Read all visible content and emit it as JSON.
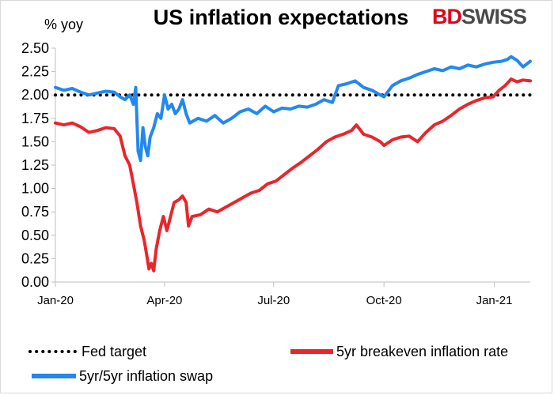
{
  "chart_data": {
    "type": "line",
    "title": "US inflation expectations",
    "ylabel": "% yoy",
    "xlabel": "",
    "ylim": [
      0,
      2.5
    ],
    "yticks": [
      "0.00",
      "0.25",
      "0.50",
      "0.75",
      "1.00",
      "1.25",
      "1.50",
      "1.75",
      "2.00",
      "2.25",
      "2.50"
    ],
    "xtick_labels": [
      "Jan-20",
      "Apr-20",
      "Jul-20",
      "Oct-20",
      "Jan-21"
    ],
    "x_range": [
      "2020-01-01",
      "2021-01-31"
    ],
    "grid": false,
    "legend_position": "bottom",
    "series": [
      {
        "name": "Fed target",
        "style": "dotted",
        "color": "#000000",
        "points": [
          [
            "2020-01-01",
            2.0
          ],
          [
            "2021-01-31",
            2.0
          ]
        ]
      },
      {
        "name": "5yr breakeven inflation rate",
        "style": "solid",
        "color": "#e8262c",
        "points": [
          [
            "2020-01-01",
            1.7
          ],
          [
            "2020-01-08",
            1.68
          ],
          [
            "2020-01-15",
            1.7
          ],
          [
            "2020-01-22",
            1.66
          ],
          [
            "2020-01-29",
            1.6
          ],
          [
            "2020-02-05",
            1.62
          ],
          [
            "2020-02-12",
            1.65
          ],
          [
            "2020-02-19",
            1.64
          ],
          [
            "2020-02-24",
            1.56
          ],
          [
            "2020-02-28",
            1.35
          ],
          [
            "2020-03-03",
            1.25
          ],
          [
            "2020-03-06",
            1.05
          ],
          [
            "2020-03-09",
            0.85
          ],
          [
            "2020-03-12",
            0.6
          ],
          [
            "2020-03-15",
            0.45
          ],
          [
            "2020-03-17",
            0.3
          ],
          [
            "2020-03-19",
            0.14
          ],
          [
            "2020-03-21",
            0.2
          ],
          [
            "2020-03-23",
            0.12
          ],
          [
            "2020-03-25",
            0.35
          ],
          [
            "2020-03-28",
            0.55
          ],
          [
            "2020-03-31",
            0.7
          ],
          [
            "2020-04-03",
            0.55
          ],
          [
            "2020-04-06",
            0.7
          ],
          [
            "2020-04-09",
            0.85
          ],
          [
            "2020-04-13",
            0.88
          ],
          [
            "2020-04-16",
            0.92
          ],
          [
            "2020-04-19",
            0.85
          ],
          [
            "2020-04-21",
            0.6
          ],
          [
            "2020-04-24",
            0.7
          ],
          [
            "2020-05-01",
            0.72
          ],
          [
            "2020-05-08",
            0.78
          ],
          [
            "2020-05-15",
            0.75
          ],
          [
            "2020-05-22",
            0.8
          ],
          [
            "2020-05-29",
            0.85
          ],
          [
            "2020-06-05",
            0.9
          ],
          [
            "2020-06-12",
            0.95
          ],
          [
            "2020-06-19",
            0.98
          ],
          [
            "2020-06-26",
            1.05
          ],
          [
            "2020-07-03",
            1.08
          ],
          [
            "2020-07-10",
            1.15
          ],
          [
            "2020-07-17",
            1.22
          ],
          [
            "2020-07-24",
            1.28
          ],
          [
            "2020-07-31",
            1.35
          ],
          [
            "2020-08-07",
            1.42
          ],
          [
            "2020-08-14",
            1.5
          ],
          [
            "2020-08-21",
            1.55
          ],
          [
            "2020-08-28",
            1.58
          ],
          [
            "2020-09-04",
            1.62
          ],
          [
            "2020-09-08",
            1.68
          ],
          [
            "2020-09-14",
            1.58
          ],
          [
            "2020-09-21",
            1.55
          ],
          [
            "2020-09-28",
            1.5
          ],
          [
            "2020-10-01",
            1.46
          ],
          [
            "2020-10-08",
            1.52
          ],
          [
            "2020-10-15",
            1.55
          ],
          [
            "2020-10-22",
            1.56
          ],
          [
            "2020-10-29",
            1.5
          ],
          [
            "2020-11-05",
            1.6
          ],
          [
            "2020-11-12",
            1.68
          ],
          [
            "2020-11-19",
            1.72
          ],
          [
            "2020-11-26",
            1.78
          ],
          [
            "2020-12-03",
            1.85
          ],
          [
            "2020-12-10",
            1.9
          ],
          [
            "2020-12-17",
            1.94
          ],
          [
            "2020-12-24",
            1.97
          ],
          [
            "2020-12-31",
            1.98
          ],
          [
            "2021-01-05",
            2.05
          ],
          [
            "2021-01-10",
            2.1
          ],
          [
            "2021-01-15",
            2.17
          ],
          [
            "2021-01-20",
            2.14
          ],
          [
            "2021-01-25",
            2.16
          ],
          [
            "2021-01-31",
            2.15
          ]
        ]
      },
      {
        "name": "5yr/5yr inflation swap",
        "style": "solid",
        "color": "#2288ee",
        "points": [
          [
            "2020-01-01",
            2.08
          ],
          [
            "2020-01-08",
            2.05
          ],
          [
            "2020-01-15",
            2.07
          ],
          [
            "2020-01-22",
            2.03
          ],
          [
            "2020-01-29",
            2.0
          ],
          [
            "2020-02-05",
            2.02
          ],
          [
            "2020-02-12",
            2.04
          ],
          [
            "2020-02-19",
            2.03
          ],
          [
            "2020-02-24",
            1.98
          ],
          [
            "2020-02-28",
            1.95
          ],
          [
            "2020-03-03",
            2.0
          ],
          [
            "2020-03-06",
            1.9
          ],
          [
            "2020-03-08",
            2.08
          ],
          [
            "2020-03-10",
            1.4
          ],
          [
            "2020-03-12",
            1.3
          ],
          [
            "2020-03-14",
            1.65
          ],
          [
            "2020-03-16",
            1.45
          ],
          [
            "2020-03-18",
            1.35
          ],
          [
            "2020-03-20",
            1.55
          ],
          [
            "2020-03-23",
            1.65
          ],
          [
            "2020-03-26",
            1.8
          ],
          [
            "2020-03-29",
            1.75
          ],
          [
            "2020-04-01",
            2.0
          ],
          [
            "2020-04-04",
            1.85
          ],
          [
            "2020-04-07",
            1.9
          ],
          [
            "2020-04-10",
            1.8
          ],
          [
            "2020-04-13",
            1.85
          ],
          [
            "2020-04-16",
            1.95
          ],
          [
            "2020-04-19",
            1.8
          ],
          [
            "2020-04-22",
            1.7
          ],
          [
            "2020-04-29",
            1.75
          ],
          [
            "2020-05-06",
            1.72
          ],
          [
            "2020-05-13",
            1.78
          ],
          [
            "2020-05-20",
            1.7
          ],
          [
            "2020-05-27",
            1.75
          ],
          [
            "2020-06-03",
            1.82
          ],
          [
            "2020-06-10",
            1.85
          ],
          [
            "2020-06-17",
            1.8
          ],
          [
            "2020-06-24",
            1.88
          ],
          [
            "2020-07-01",
            1.82
          ],
          [
            "2020-07-08",
            1.86
          ],
          [
            "2020-07-15",
            1.85
          ],
          [
            "2020-07-22",
            1.88
          ],
          [
            "2020-07-29",
            1.87
          ],
          [
            "2020-08-05",
            1.9
          ],
          [
            "2020-08-12",
            1.95
          ],
          [
            "2020-08-19",
            1.92
          ],
          [
            "2020-08-24",
            2.1
          ],
          [
            "2020-08-31",
            2.12
          ],
          [
            "2020-09-07",
            2.15
          ],
          [
            "2020-09-14",
            2.08
          ],
          [
            "2020-09-21",
            2.05
          ],
          [
            "2020-09-28",
            2.0
          ],
          [
            "2020-10-01",
            1.98
          ],
          [
            "2020-10-08",
            2.1
          ],
          [
            "2020-10-15",
            2.15
          ],
          [
            "2020-10-22",
            2.18
          ],
          [
            "2020-10-29",
            2.22
          ],
          [
            "2020-11-05",
            2.25
          ],
          [
            "2020-11-12",
            2.28
          ],
          [
            "2020-11-19",
            2.26
          ],
          [
            "2020-11-26",
            2.3
          ],
          [
            "2020-12-03",
            2.28
          ],
          [
            "2020-12-10",
            2.32
          ],
          [
            "2020-12-17",
            2.3
          ],
          [
            "2020-12-24",
            2.33
          ],
          [
            "2020-12-31",
            2.35
          ],
          [
            "2021-01-07",
            2.36
          ],
          [
            "2021-01-12",
            2.38
          ],
          [
            "2021-01-15",
            2.41
          ],
          [
            "2021-01-20",
            2.37
          ],
          [
            "2021-01-25",
            2.3
          ],
          [
            "2021-01-31",
            2.36
          ]
        ]
      }
    ]
  },
  "brand": {
    "part1": "BD",
    "part2": "SWISS",
    "red": "#e3001b",
    "grey": "#4a4a4a"
  }
}
